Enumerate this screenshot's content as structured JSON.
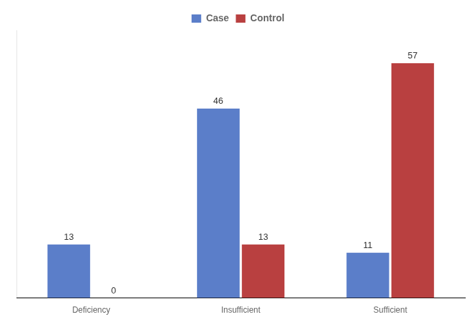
{
  "chart_data": {
    "type": "bar",
    "categories": [
      "Deficiency",
      "Insufficient",
      "Sufficient"
    ],
    "series": [
      {
        "name": "Case",
        "color": "#5B7EC9",
        "values": [
          13,
          46,
          11
        ]
      },
      {
        "name": "Control",
        "color": "#B94040",
        "values": [
          0,
          13,
          57
        ]
      }
    ],
    "ylim": [
      0,
      65
    ],
    "tick_labels": "x",
    "data_labels": true,
    "legend": "top",
    "grid": false
  }
}
